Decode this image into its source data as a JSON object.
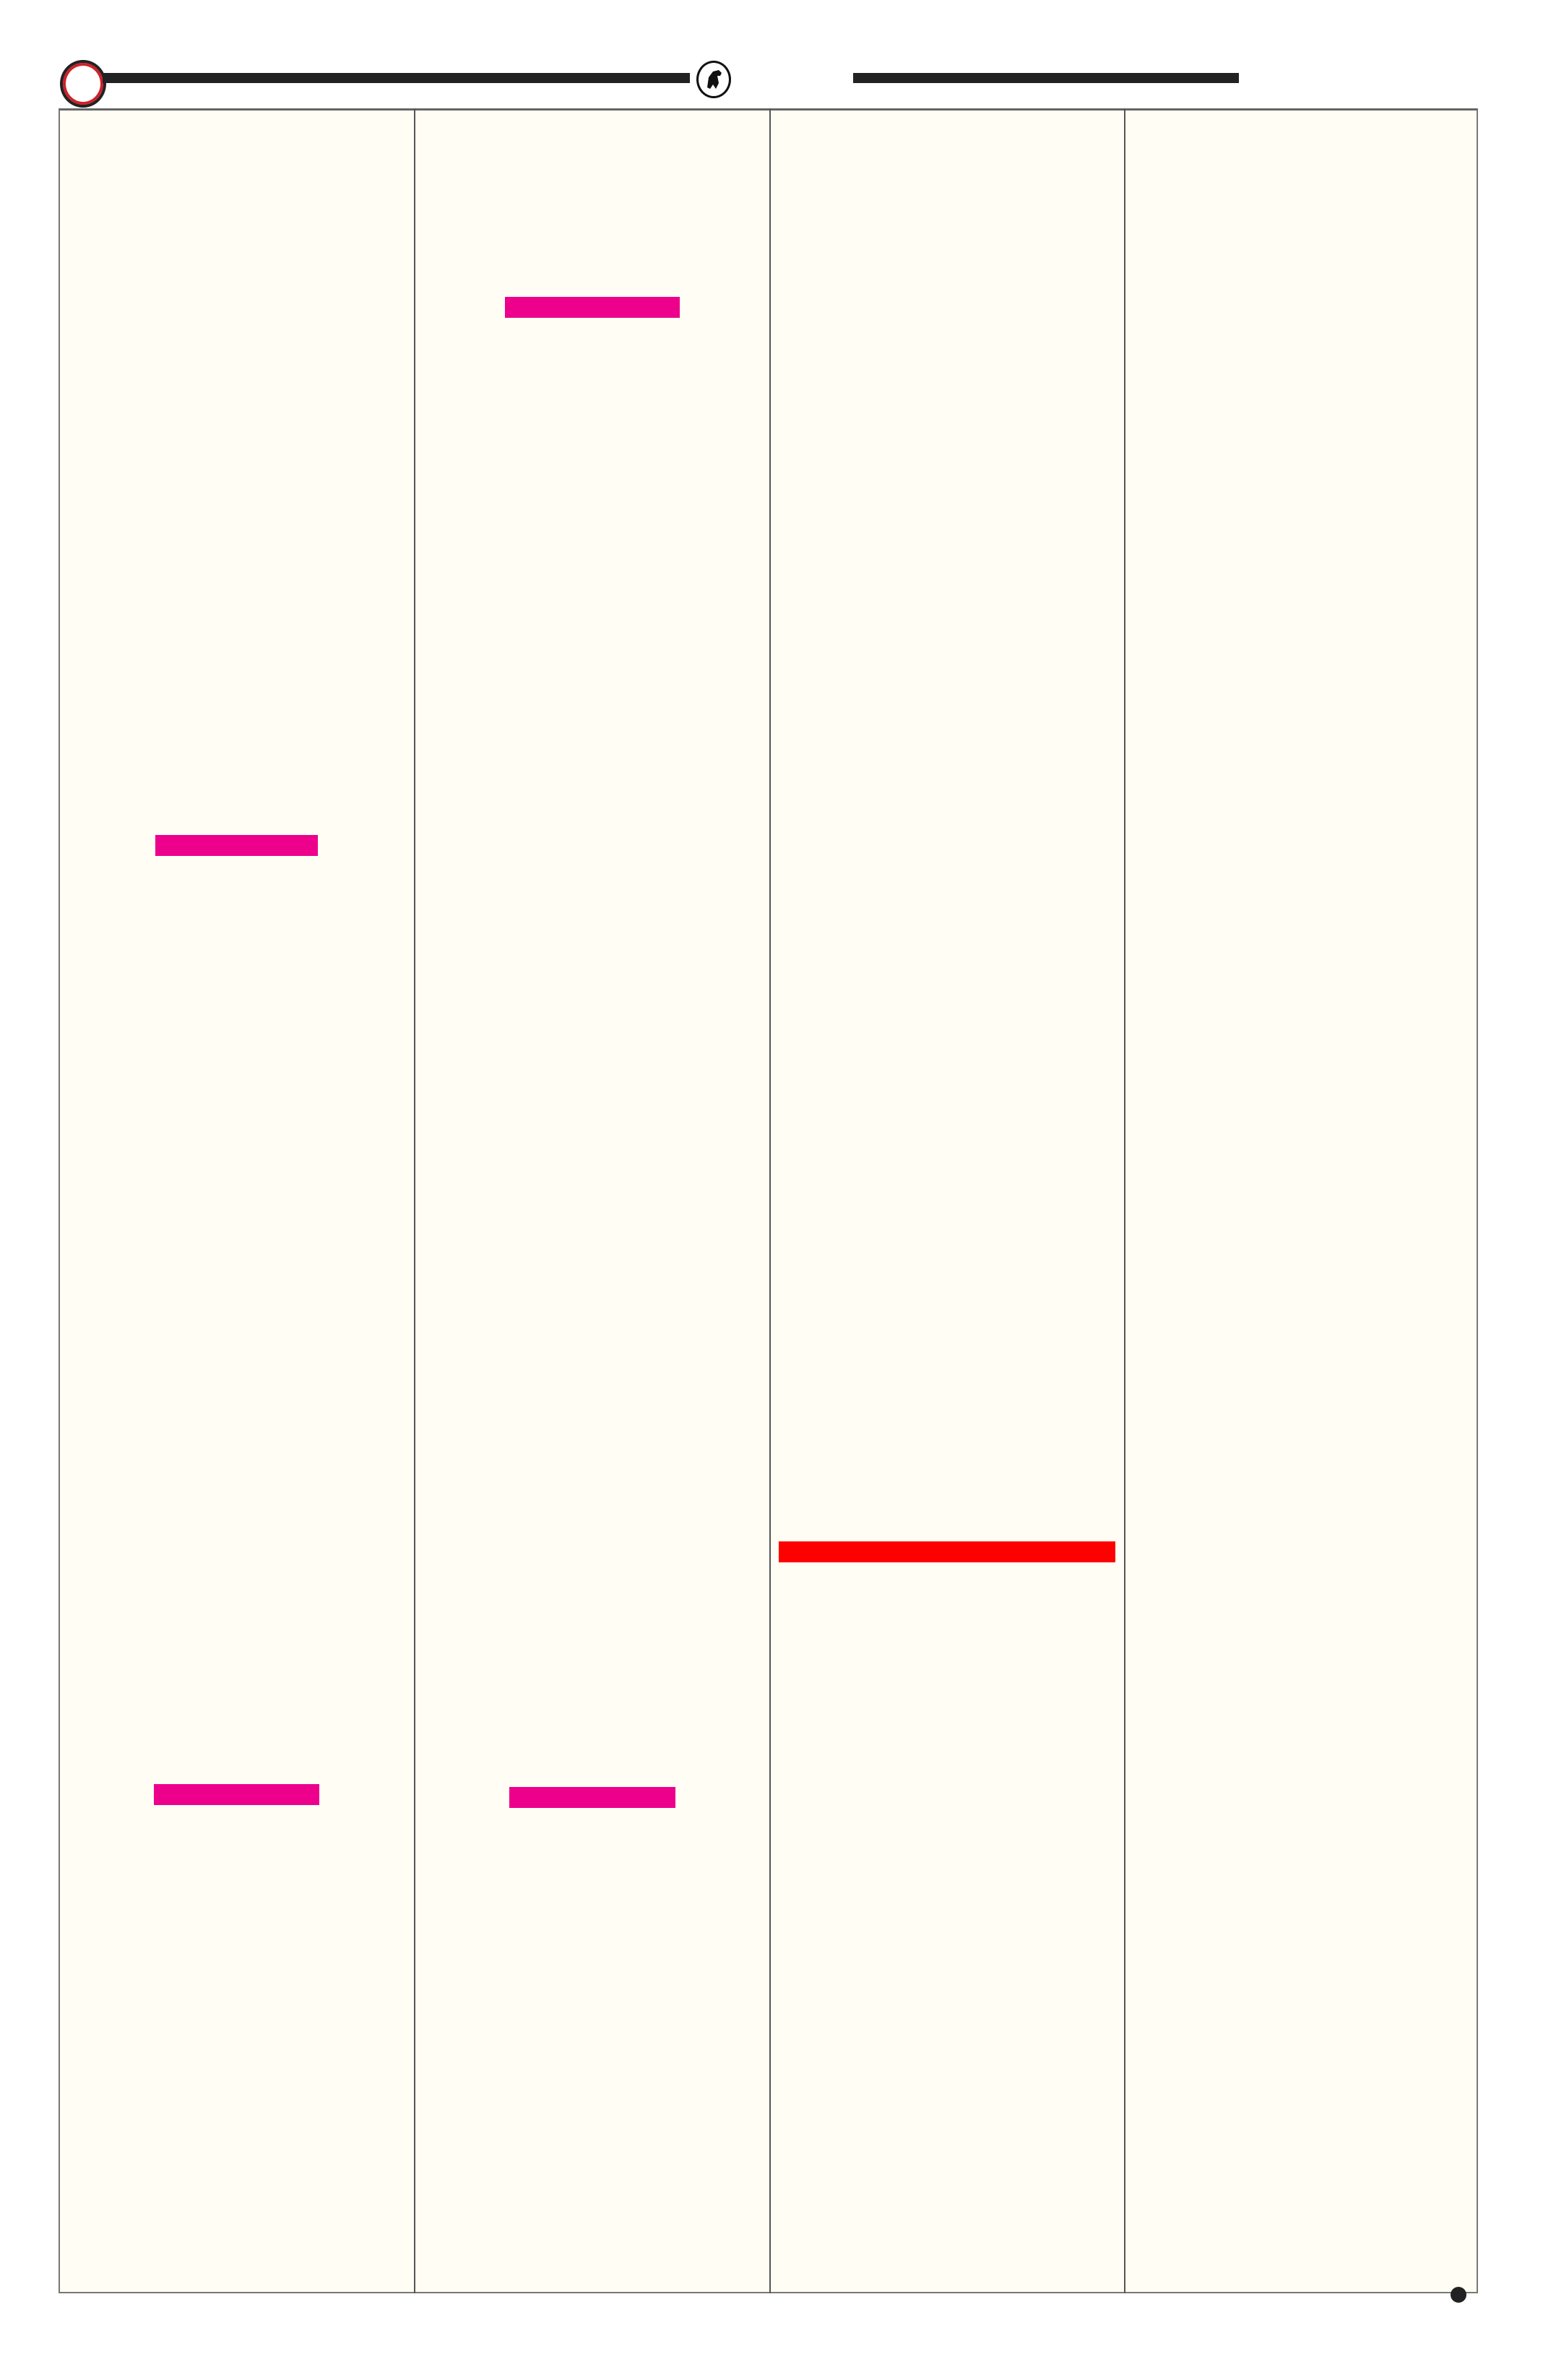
{
  "header": {
    "emblem_icon": "ring-emblem-icon",
    "logo_icon": "horse-rider-seal-icon",
    "emblem_ring_color": "#d0202a",
    "rule_color": "#222222"
  },
  "page": {
    "background": "#fffdf4",
    "columns": 4
  },
  "highlights": {
    "pink_color": "#ec008c",
    "red_color": "#ff0000"
  },
  "footer": {
    "bullet_icon": "filled-circle-icon"
  }
}
